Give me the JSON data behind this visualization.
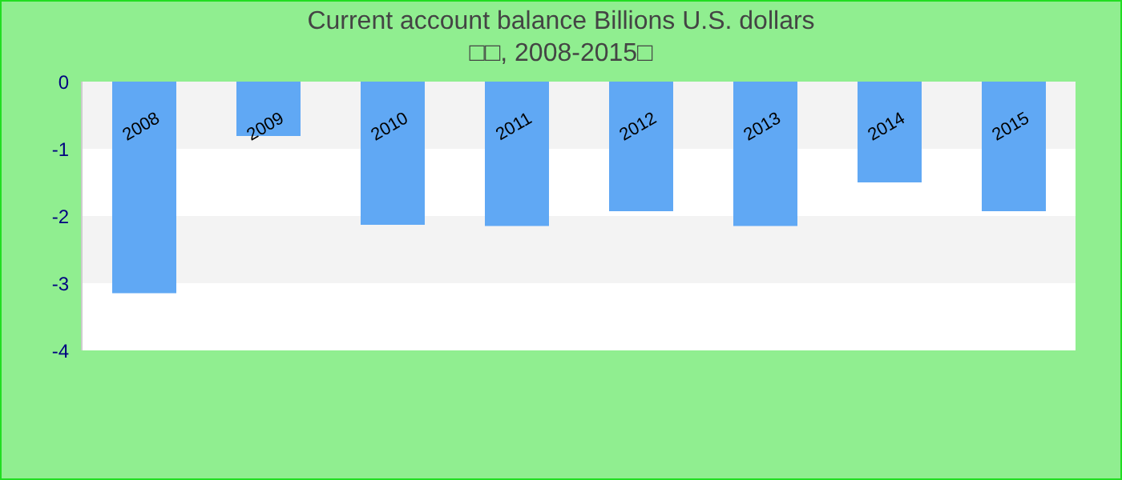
{
  "chart_data": {
    "type": "bar",
    "title": "Current account balance Billions U.S. dollars",
    "subtitle": "□□, 2008-2015□",
    "categories": [
      "2008",
      "2009",
      "2010",
      "2011",
      "2012",
      "2013",
      "2014",
      "2015"
    ],
    "values": [
      -3.15,
      -0.81,
      -2.13,
      -2.15,
      -1.93,
      -2.15,
      -1.5,
      -1.93
    ],
    "color": "#60a8f4",
    "ylim": [
      -4,
      0
    ],
    "yticks": [
      0,
      -1,
      -2,
      -3,
      -4
    ],
    "bands": [
      {
        "axis": "y",
        "from": -1,
        "to": 0,
        "color": "#f3f3f3"
      },
      {
        "axis": "y",
        "from": -3,
        "to": -2,
        "color": "#f3f3f3"
      }
    ]
  }
}
